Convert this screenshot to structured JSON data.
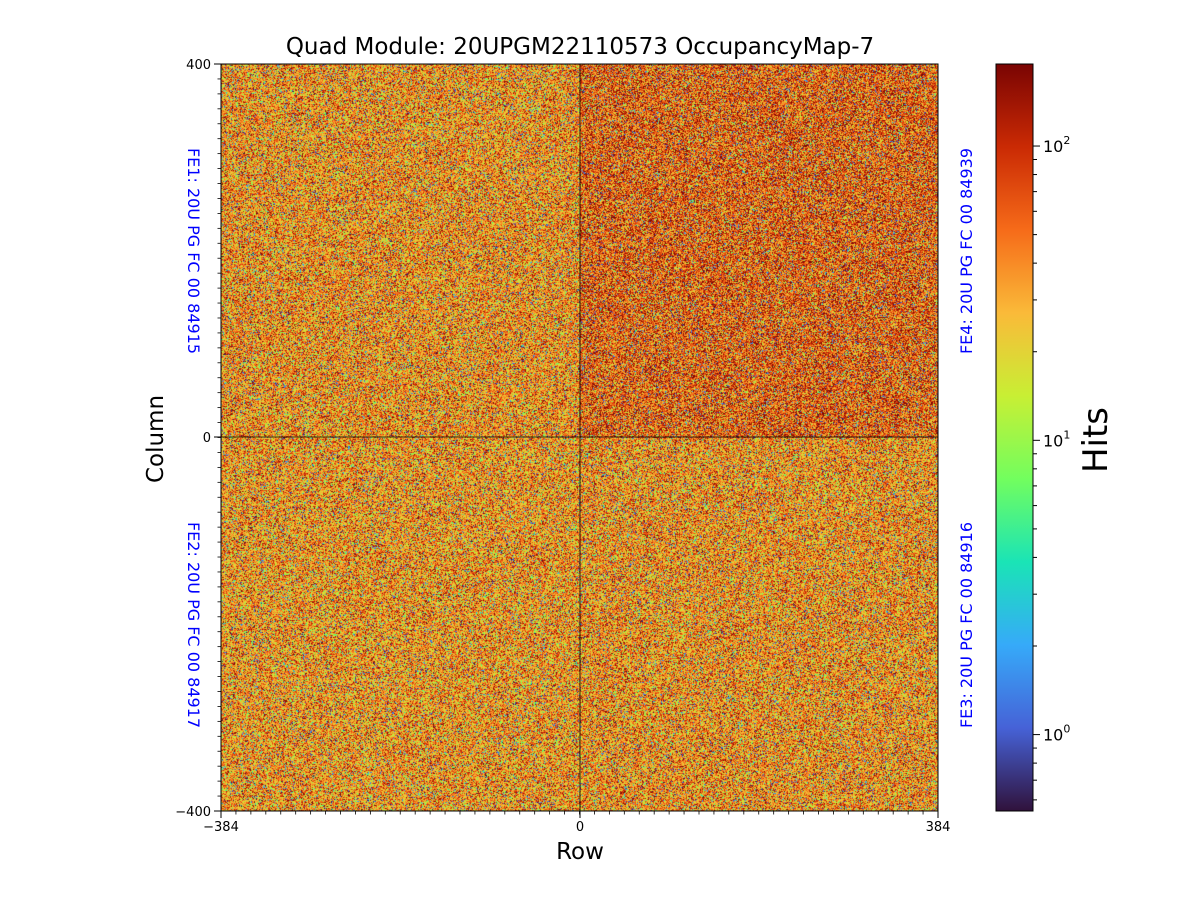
{
  "chart_data": {
    "type": "heatmap",
    "title": "Quad Module: 20UPGM22110573 OccupancyMap-7",
    "xlabel": "Row",
    "ylabel": "Column",
    "xlim": [
      -384,
      384
    ],
    "ylim": [
      -400,
      400
    ],
    "x_ticks": [
      "−384",
      "0",
      "384"
    ],
    "y_ticks": [
      "400",
      "0",
      "−400"
    ],
    "colorbar": {
      "label": "Hits",
      "scale": "log",
      "range": [
        0.55,
        190
      ],
      "ticks": [
        {
          "value": 1,
          "base": "10",
          "exp": "0"
        },
        {
          "value": 10,
          "base": "10",
          "exp": "1"
        },
        {
          "value": 100,
          "base": "10",
          "exp": "2"
        }
      ],
      "colormap": [
        "#30123b",
        "#4662d7",
        "#36aaf9",
        "#1ae4b6",
        "#72fe5e",
        "#c8ef34",
        "#faba39",
        "#f66b19",
        "#ca2a04",
        "#7a0403"
      ]
    },
    "quadrants": [
      {
        "name": "FE1",
        "label": "FE1: 20U PG FC 00 84915",
        "position": "top-left",
        "typical_hits": 40
      },
      {
        "name": "FE2",
        "label": "FE2: 20U PG FC 00 84917",
        "position": "bottom-left",
        "typical_hits": 38
      },
      {
        "name": "FE3",
        "label": "FE3: 20U PG FC 00 84916",
        "position": "bottom-right",
        "typical_hits": 40
      },
      {
        "name": "FE4",
        "label": "FE4: 20U PG FC 00 84939",
        "position": "top-right",
        "typical_hits": 60
      }
    ]
  }
}
